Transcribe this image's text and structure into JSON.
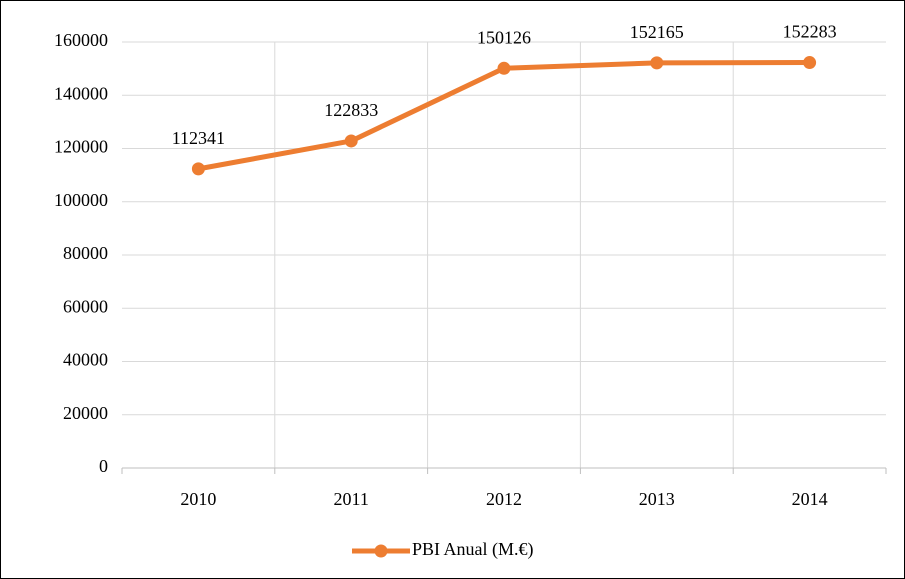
{
  "chart_data": {
    "type": "line",
    "categories": [
      "2010",
      "2011",
      "2012",
      "2013",
      "2014"
    ],
    "series": [
      {
        "name": "PBI Anual  (M.€)",
        "color": "#ed7d31",
        "values": [
          112341,
          122833,
          150126,
          152165,
          152283
        ]
      }
    ],
    "ylim": [
      0,
      160000
    ],
    "yticks": [
      0,
      20000,
      40000,
      60000,
      80000,
      100000,
      120000,
      140000,
      160000
    ],
    "grid": true,
    "data_labels": true,
    "legend": "bottom"
  }
}
